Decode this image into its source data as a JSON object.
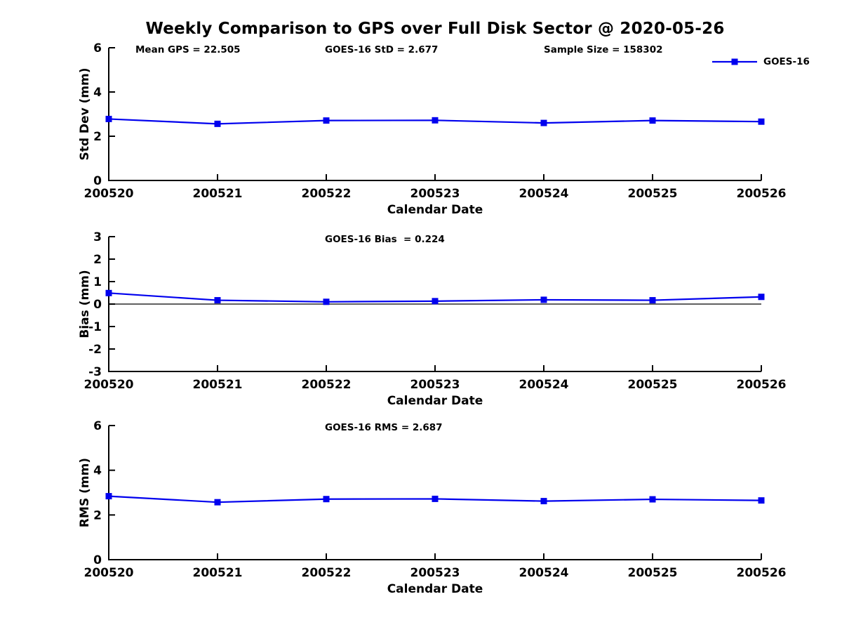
{
  "title": "Weekly Comparison to GPS over Full Disk Sector @ 2020-05-26",
  "legend": {
    "label": "GOES-16",
    "marker": "square",
    "color": "#0000ee",
    "position": "top-right"
  },
  "annotations": {
    "mean_gps": "Mean GPS = 22.505",
    "goes16_std": "GOES-16 StD = 2.677",
    "sample_size": "Sample Size = 158302",
    "goes16_bias": "GOES-16 Bias  = 0.224",
    "goes16_rms": "GOES-16 RMS = 2.687"
  },
  "colors": {
    "series": "#0000ee",
    "axis": "#000000",
    "zero_line": "#000000",
    "text": "#000000",
    "background": "#ffffff"
  },
  "chart_data": [
    {
      "type": "line",
      "name": "std-dev",
      "title": "",
      "xlabel": "Calendar Date",
      "ylabel": "Std Dev (mm)",
      "categories": [
        "200520",
        "200521",
        "200522",
        "200523",
        "200524",
        "200525",
        "200526"
      ],
      "series": [
        {
          "name": "GOES-16",
          "marker": "square",
          "color": "#0000ee",
          "values": [
            2.78,
            2.56,
            2.71,
            2.72,
            2.6,
            2.71,
            2.66
          ]
        }
      ],
      "ylim": [
        0,
        6
      ],
      "yticks": [
        0,
        2,
        4,
        6
      ],
      "grid": false,
      "zero_line": false,
      "annotation_keys": [
        "mean_gps",
        "goes16_std",
        "sample_size"
      ]
    },
    {
      "type": "line",
      "name": "bias",
      "title": "",
      "xlabel": "Calendar Date",
      "ylabel": "Bias (mm)",
      "categories": [
        "200520",
        "200521",
        "200522",
        "200523",
        "200524",
        "200525",
        "200526"
      ],
      "series": [
        {
          "name": "GOES-16",
          "marker": "square",
          "color": "#0000ee",
          "values": [
            0.49,
            0.17,
            0.1,
            0.13,
            0.19,
            0.17,
            0.32
          ]
        }
      ],
      "ylim": [
        -3,
        3
      ],
      "yticks": [
        -3,
        -2,
        -1,
        0,
        1,
        2,
        3
      ],
      "grid": false,
      "zero_line": true,
      "annotation_keys": [
        "goes16_bias"
      ]
    },
    {
      "type": "line",
      "name": "rms",
      "title": "",
      "xlabel": "Calendar Date",
      "ylabel": "RMS (mm)",
      "categories": [
        "200520",
        "200521",
        "200522",
        "200523",
        "200524",
        "200525",
        "200526"
      ],
      "series": [
        {
          "name": "GOES-16",
          "marker": "square",
          "color": "#0000ee",
          "values": [
            2.84,
            2.57,
            2.71,
            2.72,
            2.62,
            2.7,
            2.65
          ]
        }
      ],
      "ylim": [
        0,
        6
      ],
      "yticks": [
        0,
        2,
        4,
        6
      ],
      "grid": false,
      "zero_line": false,
      "annotation_keys": [
        "goes16_rms"
      ]
    }
  ]
}
